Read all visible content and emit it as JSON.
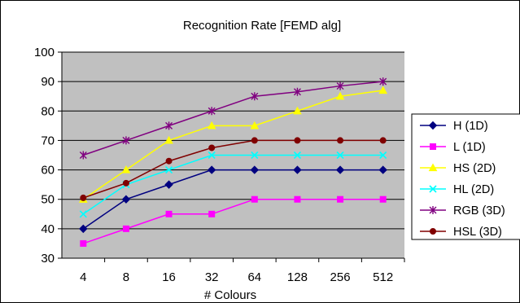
{
  "chart_data": {
    "type": "line",
    "title": "Recognition Rate [FEMD alg]",
    "xlabel": "# Colours",
    "ylabel": "",
    "categories": [
      "4",
      "8",
      "16",
      "32",
      "64",
      "128",
      "256",
      "512"
    ],
    "ylim": [
      30,
      100
    ],
    "yticks": [
      30,
      40,
      50,
      60,
      70,
      80,
      90,
      100
    ],
    "grid": "horizontal",
    "plot_background": "#c0c0c0",
    "legend_position": "right",
    "series": [
      {
        "name": "H (1D)",
        "color": "#000080",
        "marker": "diamond",
        "values": [
          40,
          50,
          55,
          60,
          60,
          60,
          60,
          60
        ]
      },
      {
        "name": "L (1D)",
        "color": "#ff00ff",
        "marker": "square",
        "values": [
          35,
          40,
          45,
          45,
          50,
          50,
          50,
          50
        ]
      },
      {
        "name": "HS (2D)",
        "color": "#ffff00",
        "marker": "triangle",
        "values": [
          50,
          60,
          70,
          75,
          75,
          80,
          85,
          87
        ]
      },
      {
        "name": "HL (2D)",
        "color": "#00ffff",
        "marker": "x",
        "values": [
          45,
          55,
          60,
          65,
          65,
          65,
          65,
          65
        ]
      },
      {
        "name": "RGB (3D)",
        "color": "#800080",
        "marker": "star",
        "values": [
          65,
          70,
          75,
          80,
          85,
          86.5,
          88.5,
          90
        ]
      },
      {
        "name": "HSL (3D)",
        "color": "#800000",
        "marker": "circle",
        "values": [
          50.5,
          55.5,
          63,
          67.5,
          70,
          70,
          70,
          70
        ]
      }
    ]
  }
}
